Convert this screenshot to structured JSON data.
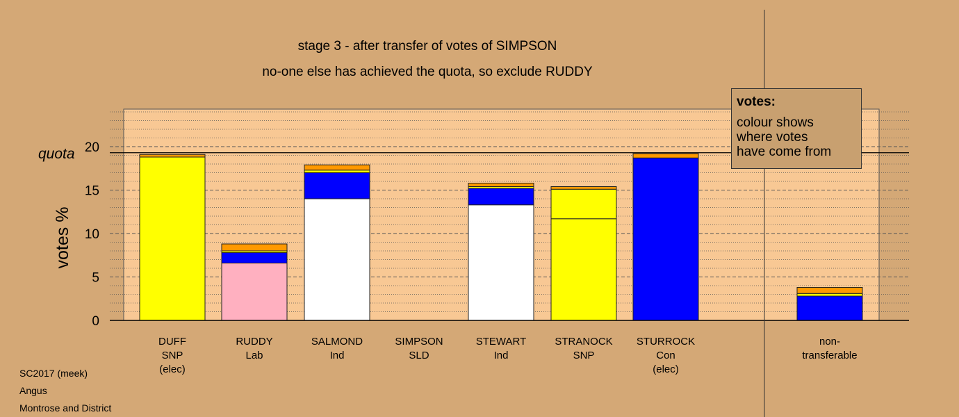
{
  "header": {
    "title": "stage 3 - after transfer of votes of SIMPSON",
    "subtitle": "no-one else has achieved the quota, so exclude RUDDY"
  },
  "legend": {
    "title": "votes:",
    "lines": [
      "colour shows",
      "where votes",
      "have come from"
    ]
  },
  "footer": {
    "lines": [
      "SC2017 (meek)",
      "Angus",
      "Montrose and District"
    ]
  },
  "colors": {
    "background": "#d4a876",
    "plot": "#f8c894",
    "SNP": "#ffff00",
    "Lab": "#ffb0c0",
    "Ind": "#ffffff",
    "Con": "#0000ff",
    "LD": "#ff9900"
  },
  "chart_data": {
    "type": "bar",
    "ylabel": "votes %",
    "quota_label": "quota",
    "quota": 19.3,
    "ylim": [
      0,
      24.4
    ],
    "yticks": [
      0,
      5,
      10,
      15,
      20
    ],
    "grid": "dotted minor, dashed major",
    "legend_position": "top-right",
    "candidates": [
      {
        "name": "DUFF",
        "party": "SNP",
        "note": "(elec)",
        "segments": [
          {
            "color": "#ffff00",
            "value": 18.8
          },
          {
            "color": "#ff9900",
            "value": 0.3
          }
        ]
      },
      {
        "name": "RUDDY",
        "party": "Lab",
        "note": "",
        "segments": [
          {
            "color": "#ffb0c0",
            "value": 6.6
          },
          {
            "color": "#0000ff",
            "value": 1.2
          },
          {
            "color": "#ffff00",
            "value": 0.2
          },
          {
            "color": "#ff9900",
            "value": 0.8
          }
        ]
      },
      {
        "name": "SALMOND",
        "party": "Ind",
        "note": "",
        "segments": [
          {
            "color": "#ffffff",
            "value": 14.0
          },
          {
            "color": "#0000ff",
            "value": 3.0
          },
          {
            "color": "#ffff00",
            "value": 0.3
          },
          {
            "color": "#ff9900",
            "value": 0.6
          }
        ]
      },
      {
        "name": "SIMPSON",
        "party": "SLD",
        "note": "",
        "segments": []
      },
      {
        "name": "STEWART",
        "party": "Ind",
        "note": "",
        "segments": [
          {
            "color": "#ffffff",
            "value": 13.3
          },
          {
            "color": "#0000ff",
            "value": 1.9
          },
          {
            "color": "#ffff00",
            "value": 0.2
          },
          {
            "color": "#ff9900",
            "value": 0.4
          }
        ]
      },
      {
        "name": "STRANOCK",
        "party": "SNP",
        "note": "",
        "segments": [
          {
            "color": "#ffff00",
            "value": 11.7
          },
          {
            "color": "#ffff00",
            "value": 3.4
          },
          {
            "color": "#ff9900",
            "value": 0.3
          }
        ]
      },
      {
        "name": "STURROCK",
        "party": "Con",
        "note": "(elec)",
        "segments": [
          {
            "color": "#0000ff",
            "value": 18.7
          },
          {
            "color": "#ff9900",
            "value": 0.5
          }
        ]
      }
    ],
    "nontransferable": {
      "name": "non-",
      "name2": "transferable",
      "segments": [
        {
          "color": "#0000ff",
          "value": 2.8
        },
        {
          "color": "#ffff00",
          "value": 0.3
        },
        {
          "color": "#ff9900",
          "value": 0.7
        }
      ]
    }
  }
}
